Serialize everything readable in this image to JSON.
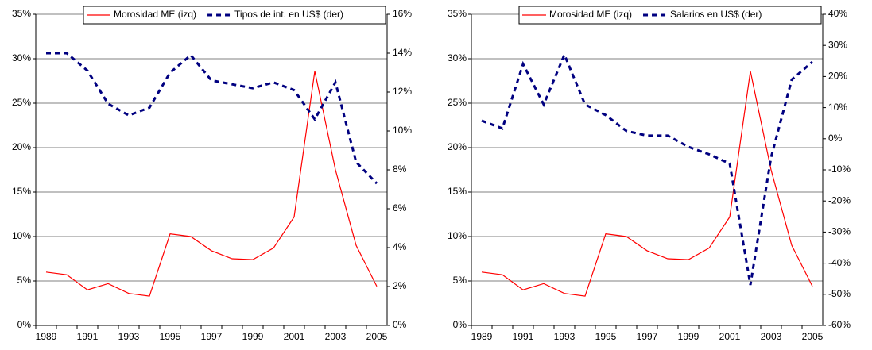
{
  "chart_data": [
    {
      "type": "line",
      "categories": [
        "1989",
        null,
        "1991",
        null,
        "1993",
        null,
        "1995",
        null,
        "1997",
        null,
        "1999",
        null,
        "2001",
        null,
        "2003",
        null,
        "2005"
      ],
      "series": [
        {
          "name": "Morosidad ME (izq)",
          "color": "#ff0000",
          "dash": "solid",
          "axis": "y",
          "values": [
            6.0,
            5.7,
            4.0,
            4.7,
            3.6,
            3.3,
            10.3,
            10.0,
            8.4,
            7.5,
            7.4,
            8.7,
            12.2,
            28.6,
            17.5,
            9.0,
            4.4
          ]
        },
        {
          "name": "Tipos de int. en US$ (der)",
          "color": "#000080",
          "dash": "dashed",
          "axis": "y2",
          "values": [
            14.0,
            14.0,
            13.1,
            11.4,
            10.8,
            11.2,
            13.0,
            13.9,
            12.6,
            12.4,
            12.2,
            12.5,
            12.1,
            10.6,
            12.5,
            8.4,
            7.3
          ]
        }
      ],
      "ylim": [
        0,
        35
      ],
      "yticks": [
        {
          "value": 0,
          "label": "0%"
        },
        {
          "value": 5,
          "label": "5%"
        },
        {
          "value": 10,
          "label": "10%"
        },
        {
          "value": 15,
          "label": "15%"
        },
        {
          "value": 20,
          "label": "20%"
        },
        {
          "value": 25,
          "label": "25%"
        },
        {
          "value": 30,
          "label": "30%"
        },
        {
          "value": 35,
          "label": "35%"
        }
      ],
      "y2lim": [
        0,
        16
      ],
      "y2ticks": [
        {
          "value": 0,
          "label": "0%"
        },
        {
          "value": 2,
          "label": "2%"
        },
        {
          "value": 4,
          "label": "4%"
        },
        {
          "value": 6,
          "label": "6%"
        },
        {
          "value": 8,
          "label": "8%"
        },
        {
          "value": 10,
          "label": "10%"
        },
        {
          "value": 12,
          "label": "12%"
        },
        {
          "value": 14,
          "label": "14%"
        },
        {
          "value": 16,
          "label": "16%"
        }
      ],
      "grid": true,
      "legend": "top"
    },
    {
      "type": "line",
      "categories": [
        "1989",
        null,
        "1991",
        null,
        "1993",
        null,
        "1995",
        null,
        "1997",
        null,
        "1999",
        null,
        "2001",
        null,
        "2003",
        null,
        "2005"
      ],
      "series": [
        {
          "name": "Morosidad ME (izq)",
          "color": "#ff0000",
          "dash": "solid",
          "axis": "y",
          "values": [
            6.0,
            5.7,
            4.0,
            4.7,
            3.6,
            3.3,
            10.3,
            10.0,
            8.4,
            7.5,
            7.4,
            8.7,
            12.2,
            28.6,
            17.5,
            9.0,
            4.4
          ]
        },
        {
          "name": "Salarios en US$ (der)",
          "color": "#000080",
          "dash": "dashed",
          "axis": "y2",
          "values": [
            5.8,
            3.3,
            24,
            11,
            27,
            11,
            7.6,
            2.5,
            1,
            1,
            -2.6,
            -5,
            -8,
            -47,
            -6,
            19,
            24.7
          ]
        }
      ],
      "ylim": [
        0,
        35
      ],
      "yticks": [
        {
          "value": 0,
          "label": "0%"
        },
        {
          "value": 5,
          "label": "5%"
        },
        {
          "value": 10,
          "label": "10%"
        },
        {
          "value": 15,
          "label": "15%"
        },
        {
          "value": 20,
          "label": "20%"
        },
        {
          "value": 25,
          "label": "25%"
        },
        {
          "value": 30,
          "label": "30%"
        },
        {
          "value": 35,
          "label": "35%"
        }
      ],
      "y2lim": [
        -60,
        40
      ],
      "y2ticks": [
        {
          "value": -60,
          "label": "-60%"
        },
        {
          "value": -50,
          "label": "-50%"
        },
        {
          "value": -40,
          "label": "-40%"
        },
        {
          "value": -30,
          "label": "-30%"
        },
        {
          "value": -20,
          "label": "-20%"
        },
        {
          "value": -10,
          "label": "-10%"
        },
        {
          "value": 0,
          "label": "0%"
        },
        {
          "value": 10,
          "label": "10%"
        },
        {
          "value": 20,
          "label": "20%"
        },
        {
          "value": 30,
          "label": "30%"
        },
        {
          "value": 40,
          "label": "40%"
        }
      ],
      "grid": true,
      "legend": "top"
    }
  ]
}
